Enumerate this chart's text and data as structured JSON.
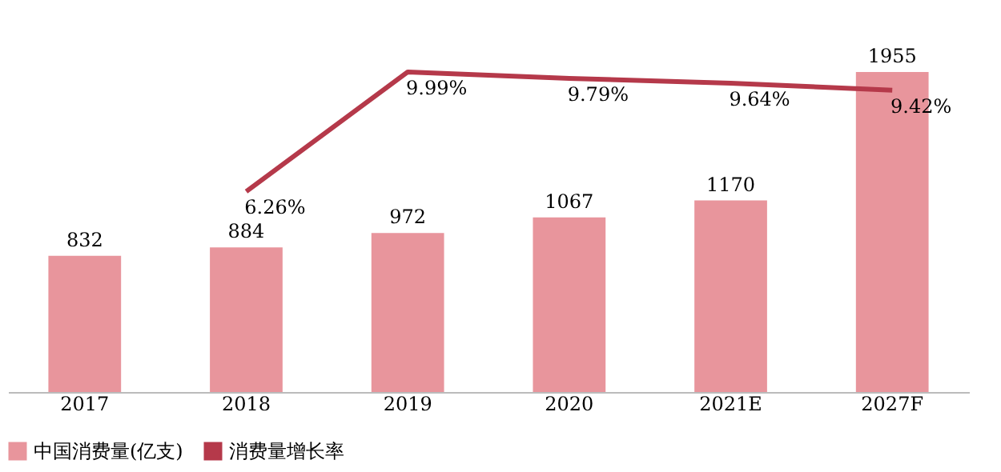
{
  "chart_data": {
    "type": "bar",
    "categories": [
      "2017",
      "2018",
      "2019",
      "2020",
      "2021E",
      "2027F"
    ],
    "series": [
      {
        "name": "中国消费量(亿支)",
        "color": "#e8959c",
        "values": [
          832,
          884,
          972,
          1067,
          1170,
          1955
        ]
      },
      {
        "name": "消费量增长率",
        "type": "line",
        "axis": "y2",
        "color": "#b5394a",
        "values": [
          null,
          6.26,
          9.99,
          9.79,
          9.64,
          9.42
        ],
        "value_labels": [
          null,
          "6.26%",
          "9.99%",
          "9.79%",
          "9.64%",
          "9.42%"
        ]
      }
    ],
    "data_labels": true,
    "tick_labels": "x",
    "legend": "bottom",
    "marker": "none",
    "line_style": "solid"
  }
}
